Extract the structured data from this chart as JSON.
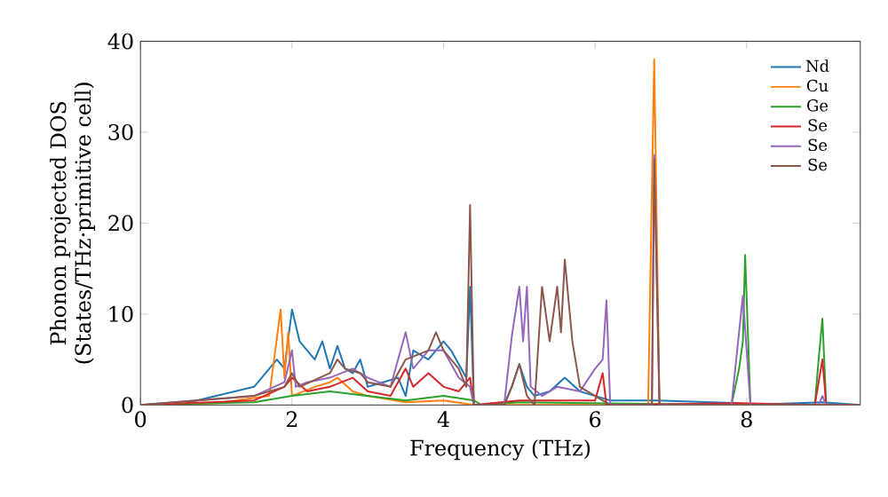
{
  "chart_data": {
    "type": "line",
    "xlabel": "Frequency (THz)",
    "ylabel": "Phonon projected DOS\n(States/THz·primitive cell)",
    "xlim": [
      0,
      9.5
    ],
    "ylim": [
      0,
      40
    ],
    "xticks": [
      0,
      2,
      4,
      6,
      8
    ],
    "yticks": [
      0,
      10,
      20,
      30,
      40
    ],
    "legend": "top right",
    "grid": false,
    "marker": "none",
    "line_style": "solid",
    "series": [
      {
        "name": "Nd",
        "color": "#1f77b4",
        "x": [
          0,
          0.5,
          1.0,
          1.5,
          1.8,
          1.9,
          2.0,
          2.1,
          2.2,
          2.3,
          2.4,
          2.5,
          2.6,
          2.7,
          2.8,
          2.9,
          3.0,
          3.2,
          3.4,
          3.5,
          3.6,
          3.8,
          4.0,
          4.1,
          4.2,
          4.3,
          4.35,
          4.4,
          4.8,
          4.9,
          5.0,
          5.1,
          5.2,
          5.4,
          5.6,
          5.8,
          6.0,
          6.2,
          6.8,
          7.9,
          8.0,
          9.0,
          9.5
        ],
        "values": [
          0,
          0,
          1,
          2,
          5,
          4,
          10.5,
          7,
          6,
          5,
          7,
          4,
          6.5,
          4,
          3.5,
          5,
          2,
          2.5,
          3,
          1,
          6,
          5,
          7,
          6,
          4.5,
          3,
          13,
          0,
          0,
          2,
          4.5,
          2,
          1,
          1.5,
          3,
          1.5,
          1,
          0.5,
          0.5,
          0.2,
          0,
          0.3,
          0
        ]
      },
      {
        "name": "Cu",
        "color": "#ff7f0e",
        "x": [
          0,
          1.0,
          1.7,
          1.85,
          1.9,
          1.95,
          2.0,
          2.3,
          2.5,
          2.6,
          2.8,
          3.0,
          3.5,
          4.0,
          4.4,
          6.7,
          6.78,
          6.85,
          9.5
        ],
        "values": [
          0,
          0.2,
          1,
          10.5,
          3,
          8,
          1,
          2,
          2.5,
          3,
          1.5,
          1,
          0.3,
          0.5,
          0,
          0,
          38,
          0,
          0
        ]
      },
      {
        "name": "Ge",
        "color": "#2ca02c",
        "x": [
          0,
          1.5,
          2.0,
          2.5,
          3.0,
          3.5,
          4.0,
          4.4,
          4.5,
          5.0,
          7.8,
          7.9,
          7.95,
          7.98,
          8.05,
          8.9,
          8.95,
          9.0,
          9.05,
          9.5
        ],
        "values": [
          0,
          0.3,
          1,
          1.5,
          1,
          0.5,
          1,
          0.5,
          0,
          0.3,
          0,
          4,
          7,
          16.5,
          0,
          0,
          5,
          9.5,
          0,
          0
        ]
      },
      {
        "name": "Se",
        "color": "#d62728",
        "x": [
          0,
          1.5,
          1.9,
          2.0,
          2.2,
          2.5,
          2.8,
          3.0,
          3.3,
          3.5,
          3.6,
          3.8,
          4.0,
          4.2,
          4.35,
          4.4,
          5.0,
          6.0,
          6.1,
          6.15,
          7.9,
          8.9,
          9.0,
          9.05,
          9.5
        ],
        "values": [
          0,
          0.5,
          2,
          3,
          1.5,
          2,
          3,
          1.5,
          1,
          4,
          2,
          3.5,
          2,
          1.5,
          3,
          0,
          0.5,
          0.5,
          3.5,
          0,
          0.2,
          0,
          5,
          0,
          0
        ]
      },
      {
        "name": "Se",
        "color": "#9467bd",
        "x": [
          0,
          1.5,
          1.9,
          2.0,
          2.05,
          2.2,
          2.5,
          2.8,
          3.0,
          3.3,
          3.5,
          3.6,
          3.8,
          4.0,
          4.2,
          4.35,
          4.4,
          4.8,
          4.9,
          5.0,
          5.05,
          5.1,
          5.15,
          5.3,
          5.5,
          5.8,
          6.0,
          6.1,
          6.15,
          6.2,
          6.75,
          6.78,
          6.85,
          7.8,
          7.85,
          7.95,
          8.05,
          8.95,
          9.0,
          9.05,
          9.5
        ],
        "values": [
          0,
          1,
          2.5,
          6,
          2,
          2.5,
          3,
          4,
          3,
          2,
          8,
          4,
          6,
          6,
          3,
          2,
          0,
          0,
          7.5,
          13,
          7,
          13,
          2,
          1,
          2,
          1.5,
          4,
          5,
          11.5,
          0,
          0,
          27.5,
          0,
          0,
          4,
          12,
          0,
          0,
          1,
          0,
          0
        ]
      },
      {
        "name": "Se",
        "color": "#8c564b",
        "x": [
          0,
          1.5,
          1.9,
          2.0,
          2.1,
          2.5,
          2.6,
          2.7,
          2.9,
          3.0,
          3.3,
          3.5,
          3.8,
          3.9,
          4.0,
          4.2,
          4.3,
          4.35,
          4.4,
          4.8,
          4.9,
          5.0,
          5.1,
          5.2,
          5.3,
          5.4,
          5.5,
          5.55,
          5.6,
          5.7,
          5.8,
          6.0,
          6.2,
          6.75,
          6.78,
          6.85,
          9.5
        ],
        "values": [
          0,
          1,
          2,
          3.5,
          2,
          3.5,
          5,
          4,
          3.5,
          2.5,
          2,
          5,
          6,
          8,
          6,
          4,
          2,
          22,
          0,
          0,
          2,
          4.5,
          1,
          0,
          13,
          7,
          13,
          8,
          16,
          7,
          2,
          1,
          0,
          0,
          27,
          0,
          0
        ]
      }
    ]
  }
}
